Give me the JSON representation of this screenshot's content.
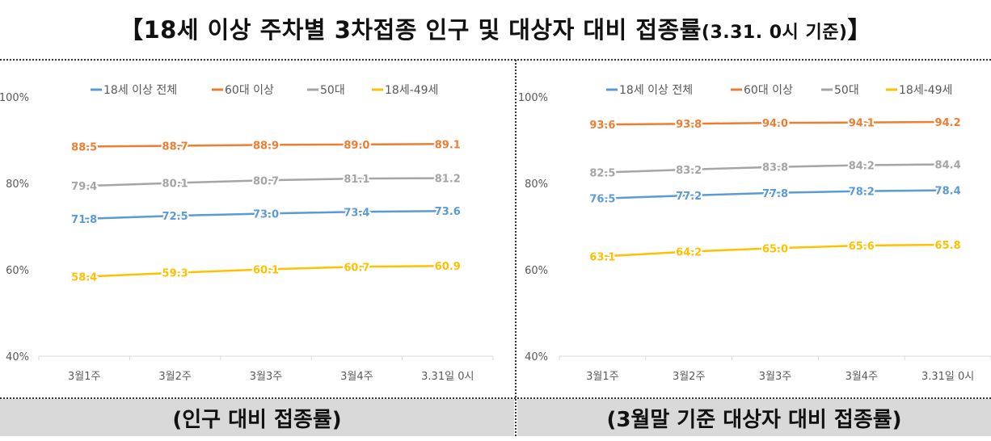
{
  "title": {
    "main": "【18세 이상 주차별 3차접종 인구 및 대상자 대비 접종률",
    "suffix": "(3.31. 0시 기준)",
    "end": "】"
  },
  "colors": {
    "18세 이상 전체": "#5b9bd5",
    "60대 이상": "#ed7d31",
    "50대": "#a5a5a5",
    "18세-49세": "#ffc000",
    "axis": "#d9d9d9",
    "text": "#595959"
  },
  "chart_data": [
    {
      "type": "line",
      "caption": "(인구 대비 접종률)",
      "categories": [
        "3월1주",
        "3월2주",
        "3월3주",
        "3월4주",
        "3.31일 0시"
      ],
      "y_ticks": [
        "40%",
        "60%",
        "80%",
        "100%"
      ],
      "ylim": [
        40,
        100
      ],
      "grid": false,
      "legend_position": "top",
      "series": [
        {
          "name": "18세 이상 전체",
          "values": [
            71.8,
            72.5,
            73.0,
            73.4,
            73.6
          ],
          "labels": [
            "71.8",
            "72.5",
            "73.0",
            "73.4",
            "73.6"
          ]
        },
        {
          "name": "60대 이상",
          "values": [
            88.5,
            88.7,
            88.9,
            89.0,
            89.1
          ],
          "labels": [
            "88.5",
            "88.7",
            "88.9",
            "89.0",
            "89.1"
          ]
        },
        {
          "name": "50대",
          "values": [
            79.4,
            80.1,
            80.7,
            81.1,
            81.2
          ],
          "labels": [
            "79.4",
            "80.1",
            "80.7",
            "81.1",
            "81.2"
          ]
        },
        {
          "name": "18세-49세",
          "values": [
            58.4,
            59.3,
            60.1,
            60.7,
            60.9
          ],
          "labels": [
            "58.4",
            "59.3",
            "60.1",
            "60.7",
            "60.9"
          ]
        }
      ]
    },
    {
      "type": "line",
      "caption": "(3월말 기준 대상자 대비 접종률)",
      "categories": [
        "3월1주",
        "3월2주",
        "3월3주",
        "3월4주",
        "3.31일 0시"
      ],
      "y_ticks": [
        "40%",
        "60%",
        "80%",
        "100%"
      ],
      "ylim": [
        40,
        100
      ],
      "grid": false,
      "legend_position": "top",
      "series": [
        {
          "name": "18세 이상 전체",
          "values": [
            76.5,
            77.2,
            77.8,
            78.2,
            78.4
          ],
          "labels": [
            "76.5",
            "77.2",
            "77.8",
            "78.2",
            "78.4"
          ]
        },
        {
          "name": "60대 이상",
          "values": [
            93.6,
            93.8,
            94.0,
            94.1,
            94.2
          ],
          "labels": [
            "93.6",
            "93.8",
            "94.0",
            "94.1",
            "94.2"
          ]
        },
        {
          "name": "50대",
          "values": [
            82.5,
            83.2,
            83.8,
            84.2,
            84.4
          ],
          "labels": [
            "82.5",
            "83.2",
            "83.8",
            "84.2",
            "84.4"
          ]
        },
        {
          "name": "18세-49세",
          "values": [
            63.1,
            64.2,
            65.0,
            65.6,
            65.8
          ],
          "labels": [
            "63.1",
            "64.2",
            "65.0",
            "65.6",
            "65.8"
          ]
        }
      ]
    }
  ]
}
